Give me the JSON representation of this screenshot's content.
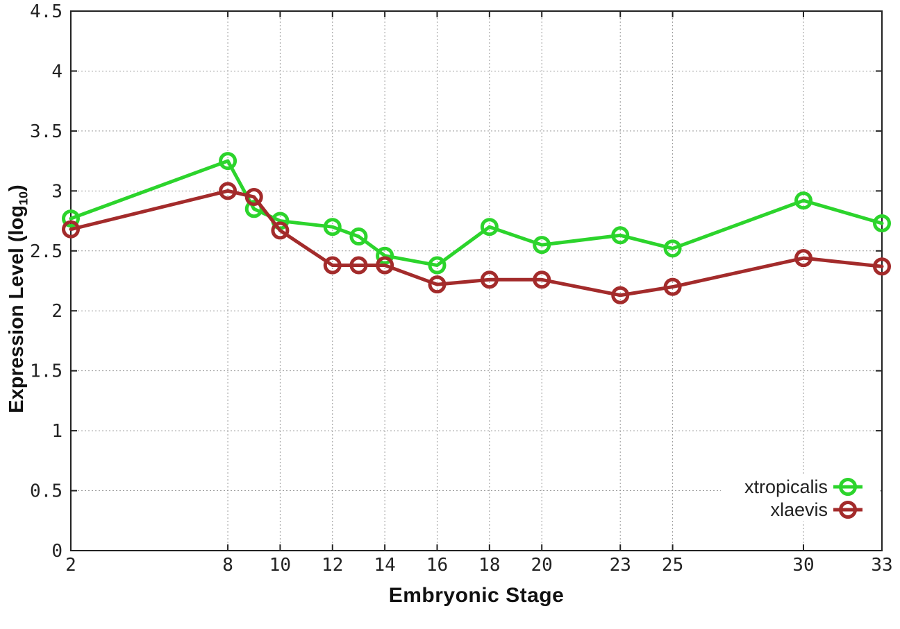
{
  "axes": {
    "xlabel": "Embryonic Stage",
    "ylabel_prefix": "Expression Level (log",
    "ylabel_subscript": "10",
    "ylabel_suffix": ")"
  },
  "chart_data": {
    "type": "line",
    "title": "",
    "xlabel": "Embryonic Stage",
    "ylabel": "Expression Level (log10)",
    "x": [
      2,
      8,
      9,
      10,
      12,
      13,
      14,
      16,
      18,
      20,
      23,
      25,
      30,
      33
    ],
    "xticks": [
      2,
      8,
      10,
      12,
      14,
      16,
      18,
      20,
      23,
      25,
      30,
      33
    ],
    "yticks": [
      0,
      0.5,
      1,
      1.5,
      2,
      2.5,
      3,
      3.5,
      4,
      4.5
    ],
    "xlim": [
      2,
      33
    ],
    "ylim": [
      0,
      4.5
    ],
    "grid": true,
    "legend_position": "bottom-right",
    "series": [
      {
        "name": "xtropicalis",
        "color": "#2cd42c",
        "values": [
          2.77,
          3.25,
          2.85,
          2.75,
          2.7,
          2.62,
          2.46,
          2.38,
          2.7,
          2.55,
          2.63,
          2.52,
          2.92,
          2.73
        ]
      },
      {
        "name": "xlaevis",
        "color": "#a32b2b",
        "values": [
          2.68,
          3.0,
          2.95,
          2.67,
          2.38,
          2.38,
          2.38,
          2.22,
          2.26,
          2.26,
          2.13,
          2.2,
          2.44,
          2.37
        ]
      }
    ],
    "colors": {
      "border": "#222222",
      "grid": "#999999",
      "tick_text": "#222222"
    }
  }
}
